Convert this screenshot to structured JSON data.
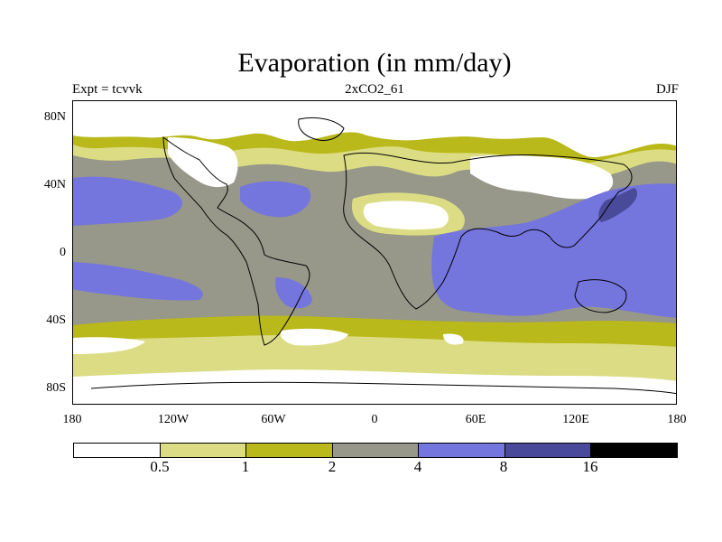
{
  "title": "Evaporation (in mm/day)",
  "subtitles": {
    "left": "Expt = tcvvk",
    "center": "2xCO2_61",
    "right": "DJF"
  },
  "axes": {
    "y_ticks": [
      "80N",
      "40N",
      "0",
      "40S",
      "80S"
    ],
    "x_ticks": [
      "180",
      "120W",
      "60W",
      "0",
      "60E",
      "120E",
      "180"
    ]
  },
  "legend": {
    "colors": [
      "#ffffff",
      "#dcdc85",
      "#b9b91b",
      "#97978a",
      "#7575de",
      "#4a4a9a",
      "#000000"
    ],
    "labels": [
      "0.5",
      "1",
      "2",
      "4",
      "8",
      "16"
    ]
  },
  "map_colors": {
    "ocean_land_base": "#97978a",
    "coast": "#000000"
  }
}
